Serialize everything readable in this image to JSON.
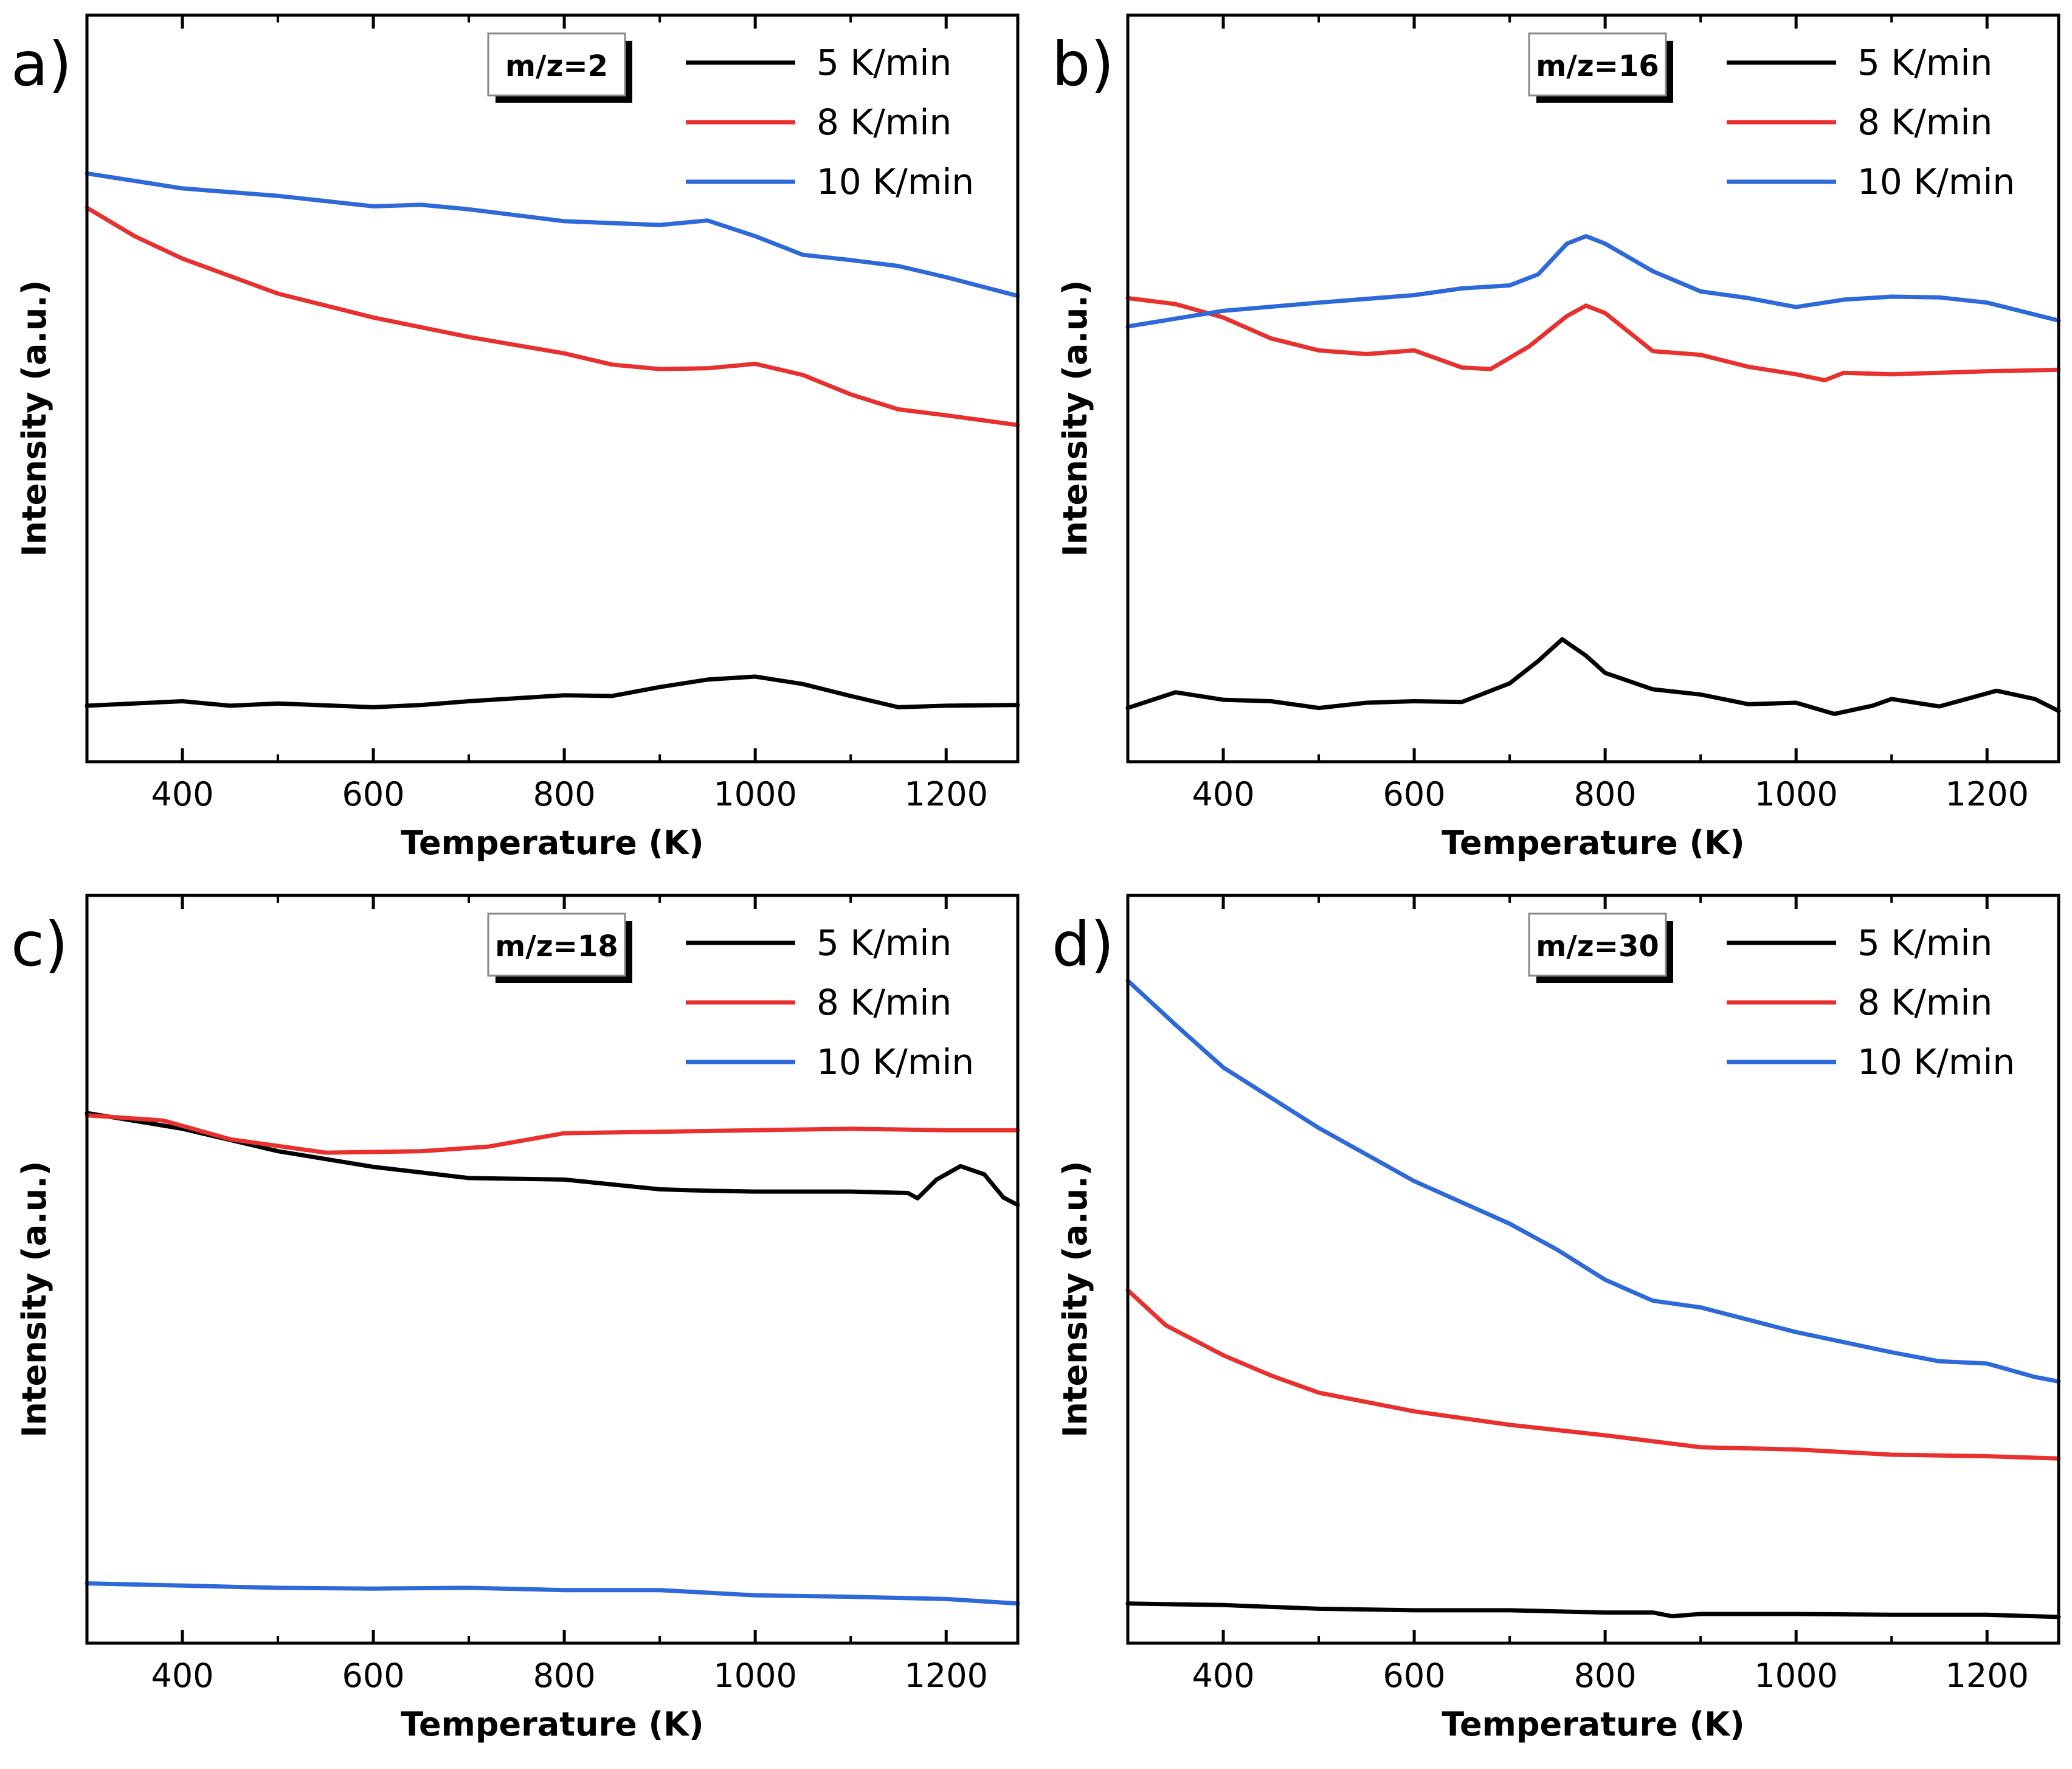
{
  "chart_data": [
    {
      "type": "line",
      "panel_label": "a)",
      "annotation": "m/z=2",
      "xlabel": "Temperature (K)",
      "ylabel": "Intensity (a.u.)",
      "xlim": [
        300,
        1275
      ],
      "ylim": [
        0,
        100
      ],
      "xticks": [
        400,
        600,
        800,
        1000,
        1200
      ],
      "xtick_labels": [
        "400",
        "600",
        "800",
        "1000",
        "1200"
      ],
      "legend_position": "top-right",
      "series": [
        {
          "name": "5 K/min",
          "color": "#000000",
          "points": [
            [
              300,
              7.5
            ],
            [
              400,
              8.1
            ],
            [
              450,
              7.5
            ],
            [
              500,
              7.8
            ],
            [
              600,
              7.3
            ],
            [
              650,
              7.6
            ],
            [
              700,
              8.1
            ],
            [
              800,
              8.9
            ],
            [
              850,
              8.8
            ],
            [
              900,
              10
            ],
            [
              950,
              11.0
            ],
            [
              1000,
              11.4
            ],
            [
              1050,
              10.4
            ],
            [
              1100,
              8.8
            ],
            [
              1150,
              7.3
            ],
            [
              1200,
              7.5
            ],
            [
              1275,
              7.6
            ]
          ]
        },
        {
          "name": "8 K/min",
          "color": "#e8302f",
          "points": [
            [
              300,
              74.2
            ],
            [
              350,
              70.4
            ],
            [
              400,
              67.4
            ],
            [
              500,
              62.7
            ],
            [
              600,
              59.5
            ],
            [
              700,
              56.9
            ],
            [
              800,
              54.7
            ],
            [
              850,
              53.2
            ],
            [
              900,
              52.6
            ],
            [
              950,
              52.7
            ],
            [
              1000,
              53.3
            ],
            [
              1050,
              51.8
            ],
            [
              1100,
              49.2
            ],
            [
              1150,
              47.2
            ],
            [
              1200,
              46.4
            ],
            [
              1275,
              45.1
            ]
          ]
        },
        {
          "name": "10 K/min",
          "color": "#2e69d9",
          "points": [
            [
              300,
              78.8
            ],
            [
              400,
              76.8
            ],
            [
              500,
              75.8
            ],
            [
              600,
              74.4
            ],
            [
              650,
              74.6
            ],
            [
              700,
              74.0
            ],
            [
              800,
              72.4
            ],
            [
              900,
              71.9
            ],
            [
              950,
              72.5
            ],
            [
              1000,
              70.4
            ],
            [
              1050,
              67.9
            ],
            [
              1100,
              67.2
            ],
            [
              1150,
              66.4
            ],
            [
              1200,
              64.9
            ],
            [
              1275,
              62.4
            ]
          ]
        }
      ]
    },
    {
      "type": "line",
      "panel_label": "b)",
      "annotation": "m/z=16",
      "xlabel": "Temperature (K)",
      "ylabel": "Intensity (a.u.)",
      "xlim": [
        300,
        1275
      ],
      "ylim": [
        0,
        100
      ],
      "xticks": [
        400,
        600,
        800,
        1000,
        1200
      ],
      "xtick_labels": [
        "400",
        "600",
        "800",
        "1000",
        "1200"
      ],
      "legend_position": "top-right",
      "series": [
        {
          "name": "5 K/min",
          "color": "#000000",
          "points": [
            [
              300,
              7.2
            ],
            [
              350,
              9.3
            ],
            [
              400,
              8.3
            ],
            [
              450,
              8.1
            ],
            [
              500,
              7.2
            ],
            [
              550,
              7.9
            ],
            [
              600,
              8.1
            ],
            [
              650,
              8.0
            ],
            [
              700,
              10.5
            ],
            [
              730,
              13.5
            ],
            [
              755,
              16.4
            ],
            [
              780,
              14.2
            ],
            [
              800,
              11.9
            ],
            [
              850,
              9.7
            ],
            [
              900,
              9.0
            ],
            [
              950,
              7.7
            ],
            [
              1000,
              7.9
            ],
            [
              1040,
              6.4
            ],
            [
              1080,
              7.5
            ],
            [
              1100,
              8.4
            ],
            [
              1150,
              7.4
            ],
            [
              1210,
              9.5
            ],
            [
              1250,
              8.4
            ],
            [
              1275,
              6.8
            ]
          ]
        },
        {
          "name": "8 K/min",
          "color": "#e8302f",
          "points": [
            [
              300,
              62.1
            ],
            [
              350,
              61.3
            ],
            [
              400,
              59.5
            ],
            [
              450,
              56.7
            ],
            [
              500,
              55.1
            ],
            [
              550,
              54.6
            ],
            [
              600,
              55.1
            ],
            [
              650,
              52.8
            ],
            [
              680,
              52.6
            ],
            [
              720,
              55.6
            ],
            [
              760,
              59.7
            ],
            [
              780,
              61.1
            ],
            [
              800,
              60.1
            ],
            [
              850,
              55.0
            ],
            [
              900,
              54.5
            ],
            [
              950,
              52.9
            ],
            [
              1000,
              51.9
            ],
            [
              1030,
              51.1
            ],
            [
              1050,
              52.1
            ],
            [
              1100,
              51.9
            ],
            [
              1200,
              52.3
            ],
            [
              1275,
              52.5
            ]
          ]
        },
        {
          "name": "10 K/min",
          "color": "#2e69d9",
          "points": [
            [
              300,
              58.3
            ],
            [
              400,
              60.4
            ],
            [
              500,
              61.5
            ],
            [
              600,
              62.5
            ],
            [
              650,
              63.4
            ],
            [
              700,
              63.8
            ],
            [
              730,
              65.3
            ],
            [
              760,
              69.4
            ],
            [
              780,
              70.4
            ],
            [
              800,
              69.4
            ],
            [
              850,
              65.7
            ],
            [
              900,
              63.0
            ],
            [
              950,
              62.1
            ],
            [
              1000,
              60.9
            ],
            [
              1050,
              61.9
            ],
            [
              1100,
              62.3
            ],
            [
              1150,
              62.2
            ],
            [
              1200,
              61.5
            ],
            [
              1275,
              59.1
            ]
          ]
        }
      ]
    },
    {
      "type": "line",
      "panel_label": "c)",
      "annotation": "m/z=18",
      "xlabel": "Temperature (K)",
      "ylabel": "Intensity (a.u.)",
      "xlim": [
        300,
        1275
      ],
      "ylim": [
        0,
        100
      ],
      "xticks": [
        400,
        600,
        800,
        1000,
        1200
      ],
      "xtick_labels": [
        "400",
        "600",
        "800",
        "1000",
        "1200"
      ],
      "legend_position": "top-right",
      "series": [
        {
          "name": "5 K/min",
          "color": "#000000",
          "points": [
            [
              300,
              70.9
            ],
            [
              400,
              68.8
            ],
            [
              500,
              65.8
            ],
            [
              600,
              63.7
            ],
            [
              700,
              62.2
            ],
            [
              800,
              62.0
            ],
            [
              900,
              60.7
            ],
            [
              950,
              60.5
            ],
            [
              1000,
              60.4
            ],
            [
              1100,
              60.4
            ],
            [
              1160,
              60.2
            ],
            [
              1170,
              59.5
            ],
            [
              1190,
              62.0
            ],
            [
              1215,
              63.8
            ],
            [
              1240,
              62.7
            ],
            [
              1260,
              59.6
            ],
            [
              1275,
              58.6
            ]
          ]
        },
        {
          "name": "8 K/min",
          "color": "#e8302f",
          "points": [
            [
              300,
              70.6
            ],
            [
              380,
              69.9
            ],
            [
              450,
              67.4
            ],
            [
              550,
              65.6
            ],
            [
              650,
              65.8
            ],
            [
              720,
              66.4
            ],
            [
              800,
              68.2
            ],
            [
              900,
              68.4
            ],
            [
              1000,
              68.6
            ],
            [
              1100,
              68.8
            ],
            [
              1200,
              68.6
            ],
            [
              1275,
              68.6
            ]
          ]
        },
        {
          "name": "10 K/min",
          "color": "#2e69d9",
          "points": [
            [
              300,
              8.0
            ],
            [
              400,
              7.7
            ],
            [
              500,
              7.4
            ],
            [
              600,
              7.3
            ],
            [
              700,
              7.4
            ],
            [
              800,
              7.1
            ],
            [
              900,
              7.1
            ],
            [
              1000,
              6.4
            ],
            [
              1100,
              6.2
            ],
            [
              1200,
              5.9
            ],
            [
              1275,
              5.3
            ]
          ]
        }
      ]
    },
    {
      "type": "line",
      "panel_label": "d)",
      "annotation": "m/z=30",
      "xlabel": "Temperature (K)",
      "ylabel": "Intensity (a.u.)",
      "xlim": [
        300,
        1275
      ],
      "ylim": [
        0,
        100
      ],
      "xticks": [
        400,
        600,
        800,
        1000,
        1200
      ],
      "xtick_labels": [
        "400",
        "600",
        "800",
        "1000",
        "1200"
      ],
      "legend_position": "top-right",
      "series": [
        {
          "name": "5 K/min",
          "color": "#000000",
          "points": [
            [
              300,
              5.3
            ],
            [
              400,
              5.1
            ],
            [
              500,
              4.6
            ],
            [
              600,
              4.4
            ],
            [
              700,
              4.4
            ],
            [
              800,
              4.1
            ],
            [
              850,
              4.1
            ],
            [
              870,
              3.6
            ],
            [
              900,
              3.9
            ],
            [
              1000,
              3.9
            ],
            [
              1100,
              3.8
            ],
            [
              1200,
              3.8
            ],
            [
              1275,
              3.5
            ]
          ]
        },
        {
          "name": "8 K/min",
          "color": "#e8302f",
          "points": [
            [
              300,
              47.2
            ],
            [
              340,
              42.5
            ],
            [
              400,
              38.5
            ],
            [
              450,
              35.8
            ],
            [
              500,
              33.5
            ],
            [
              600,
              31.0
            ],
            [
              700,
              29.2
            ],
            [
              800,
              27.8
            ],
            [
              900,
              26.2
            ],
            [
              1000,
              25.9
            ],
            [
              1100,
              25.2
            ],
            [
              1200,
              25.0
            ],
            [
              1275,
              24.7
            ]
          ]
        },
        {
          "name": "10 K/min",
          "color": "#2e69d9",
          "points": [
            [
              300,
              88.6
            ],
            [
              350,
              82.7
            ],
            [
              400,
              77.0
            ],
            [
              500,
              68.9
            ],
            [
              600,
              61.8
            ],
            [
              700,
              56.1
            ],
            [
              750,
              52.6
            ],
            [
              800,
              48.6
            ],
            [
              850,
              45.8
            ],
            [
              900,
              44.9
            ],
            [
              1000,
              41.6
            ],
            [
              1100,
              38.9
            ],
            [
              1150,
              37.7
            ],
            [
              1200,
              37.4
            ],
            [
              1250,
              35.6
            ],
            [
              1275,
              35.0
            ]
          ]
        }
      ]
    }
  ]
}
